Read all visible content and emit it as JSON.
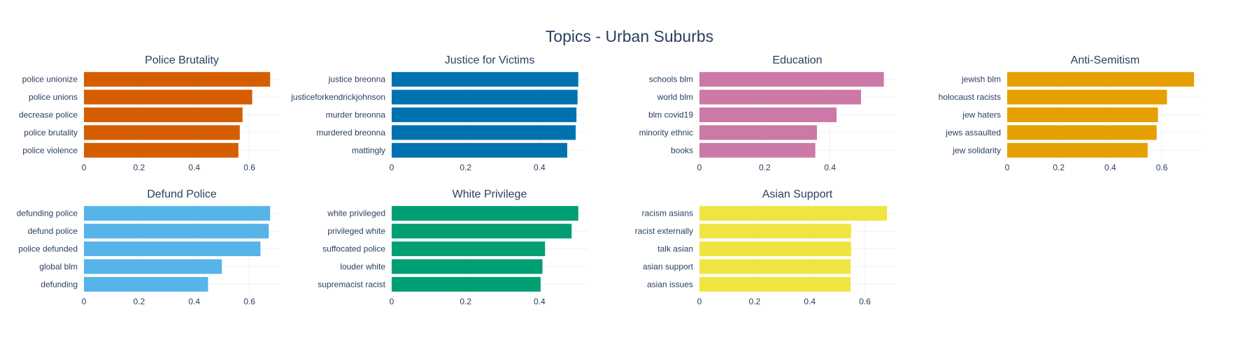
{
  "chart_data": {
    "title": "Topics - Urban Suburbs",
    "type": "bar",
    "orientation": "horizontal",
    "grid": true,
    "legend": "none",
    "panels": [
      {
        "title": "Police Brutality",
        "color": "#D55E00",
        "xlim": [
          0,
          0.71
        ],
        "xticks": [
          "0",
          "0.2",
          "0.4",
          "0.6"
        ],
        "tick_values": [
          0,
          0.2,
          0.4,
          0.6
        ],
        "categories": [
          "police unionize",
          "police unions",
          "decrease police",
          "police brutality",
          "police violence"
        ],
        "values": [
          0.675,
          0.61,
          0.575,
          0.565,
          0.56
        ]
      },
      {
        "title": "Justice for Victims",
        "color": "#0072B2",
        "xlim": [
          0,
          0.53
        ],
        "xticks": [
          "0",
          "0.2",
          "0.4"
        ],
        "tick_values": [
          0,
          0.2,
          0.4
        ],
        "categories": [
          "justice breonna",
          "justiceforkendrickjohnson",
          "murder breonna",
          "murdered breonna",
          "mattingly"
        ],
        "values": [
          0.505,
          0.503,
          0.5,
          0.498,
          0.475
        ]
      },
      {
        "title": "Education",
        "color": "#CC79A7",
        "xlim": [
          0,
          0.6
        ],
        "xticks": [
          "0",
          "0.2",
          "0.4"
        ],
        "tick_values": [
          0,
          0.2,
          0.4
        ],
        "categories": [
          "schools blm",
          "world blm",
          "blm covid19",
          "minority ethnic",
          "books"
        ],
        "values": [
          0.565,
          0.495,
          0.42,
          0.36,
          0.355
        ]
      },
      {
        "title": "Anti-Semitism",
        "color": "#E69F00",
        "xlim": [
          0,
          0.76
        ],
        "xticks": [
          "0",
          "0.2",
          "0.4",
          "0.6"
        ],
        "tick_values": [
          0,
          0.2,
          0.4,
          0.6
        ],
        "categories": [
          "jewish blm",
          "holocaust racists",
          "jew haters",
          "jews assaulted",
          "jew solidarity"
        ],
        "values": [
          0.725,
          0.62,
          0.585,
          0.58,
          0.545
        ]
      },
      {
        "title": "Defund Police",
        "color": "#56B4E9",
        "xlim": [
          0,
          0.71
        ],
        "xticks": [
          "0",
          "0.2",
          "0.4",
          "0.6"
        ],
        "tick_values": [
          0,
          0.2,
          0.4,
          0.6
        ],
        "categories": [
          "defunding police",
          "defund police",
          "police defunded",
          "global blm",
          "defunding"
        ],
        "values": [
          0.675,
          0.67,
          0.64,
          0.5,
          0.45
        ]
      },
      {
        "title": "White Privilege",
        "color": "#009E73",
        "xlim": [
          0,
          0.53
        ],
        "xticks": [
          "0",
          "0.2",
          "0.4"
        ],
        "tick_values": [
          0,
          0.2,
          0.4
        ],
        "categories": [
          "white privileged",
          "privileged white",
          "suffocated police",
          "louder white",
          "supremacist racist"
        ],
        "values": [
          0.505,
          0.487,
          0.415,
          0.408,
          0.403
        ]
      },
      {
        "title": "Asian Support",
        "color": "#F0E442",
        "xlim": [
          0,
          0.71
        ],
        "xticks": [
          "0",
          "0.2",
          "0.4",
          "0.6"
        ],
        "tick_values": [
          0,
          0.2,
          0.4,
          0.6
        ],
        "categories": [
          "racism asians",
          "racist externally",
          "talk asian",
          "asian support",
          "asian issues"
        ],
        "values": [
          0.68,
          0.55,
          0.55,
          0.548,
          0.548
        ]
      }
    ]
  }
}
